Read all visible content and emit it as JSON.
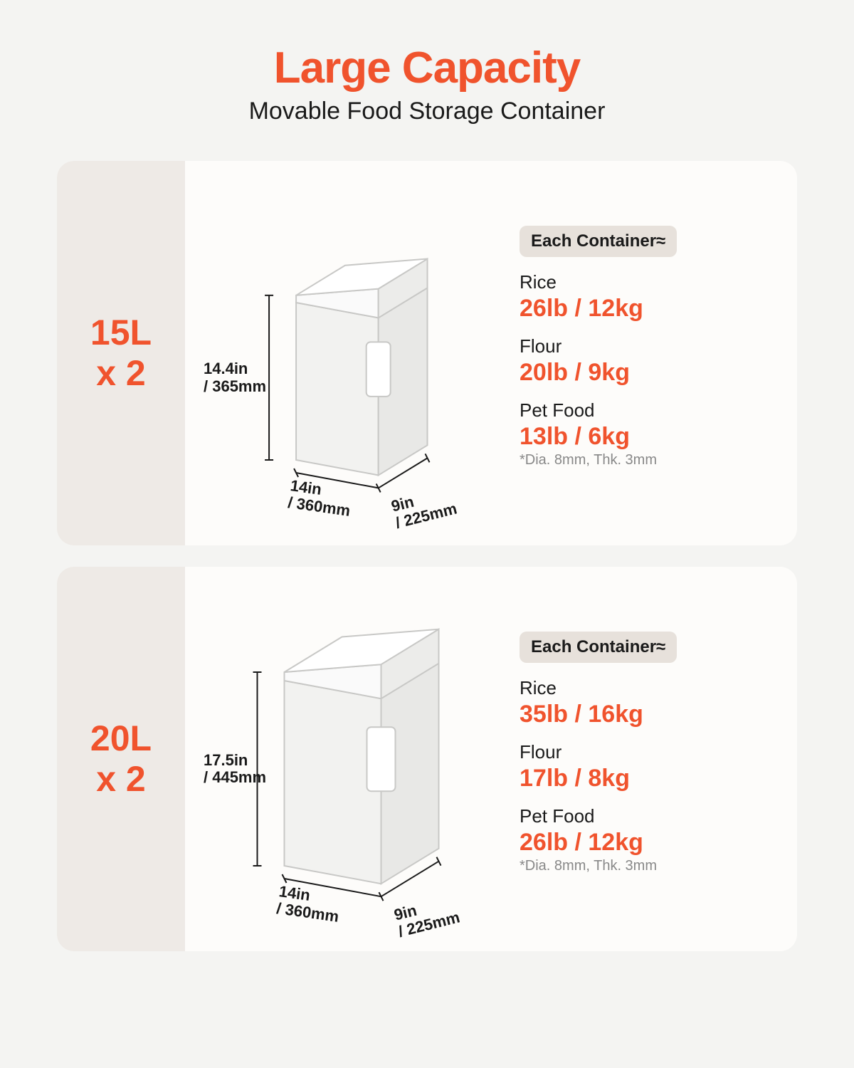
{
  "colors": {
    "accent": "#f0532d",
    "text": "#1a1a1a",
    "side_tab_bg": "#eeeae6",
    "card_bg": "#fdfcfa",
    "badge_bg": "#e7e1db",
    "note": "#888888",
    "container_fill": "#f2f2f0",
    "container_stroke": "#c8c8c6",
    "dim_line": "#1a1a1a"
  },
  "header": {
    "title": "Large Capacity",
    "subtitle": "Movable Food Storage Container"
  },
  "cards": [
    {
      "size_line1": "15L",
      "size_line2": "x 2",
      "badge": "Each Container≈",
      "dims": {
        "height": "14.4in\n/ 365mm",
        "width": "14in\n/ 360mm",
        "depth": "9in\n/ 225mm"
      },
      "specs": [
        {
          "label": "Rice",
          "value": "26lb / 12kg"
        },
        {
          "label": "Flour",
          "value": "20lb / 9kg"
        },
        {
          "label": "Pet Food",
          "value": "13lb / 6kg",
          "note": "*Dia. 8mm, Thk. 3mm"
        }
      ],
      "container_scale": 0.85
    },
    {
      "size_line1": "20L",
      "size_line2": "x 2",
      "badge": "Each Container≈",
      "dims": {
        "height": "17.5in\n/ 445mm",
        "width": "14in\n/ 360mm",
        "depth": "9in\n/ 225mm"
      },
      "specs": [
        {
          "label": "Rice",
          "value": "35lb / 16kg"
        },
        {
          "label": "Flour",
          "value": "17lb / 8kg"
        },
        {
          "label": "Pet Food",
          "value": "26lb / 12kg",
          "note": "*Dia. 8mm, Thk. 3mm"
        }
      ],
      "container_scale": 1.0
    }
  ]
}
